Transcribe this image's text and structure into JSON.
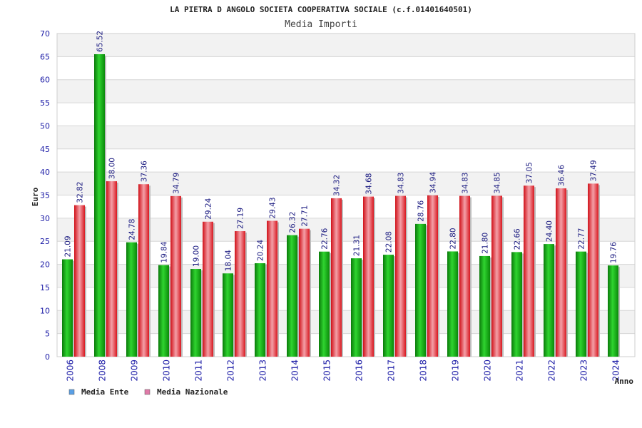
{
  "chart_data": {
    "type": "bar",
    "title": "LA PIETRA D ANGOLO SOCIETA COOPERATIVA SOCIALE (c.f.01401640501)",
    "subtitle": "Media Importi",
    "xlabel": "Anno",
    "ylabel": "Euro",
    "ylim": [
      0,
      70
    ],
    "ytick_step": 5,
    "grid": true,
    "legend_placement": "bottom-left",
    "categories": [
      "2006",
      "2008",
      "2009",
      "2010",
      "2011",
      "2012",
      "2013",
      "2014",
      "2015",
      "2016",
      "2017",
      "2018",
      "2019",
      "2020",
      "2021",
      "2022",
      "2023",
      "2024"
    ],
    "series": [
      {
        "name": "Media Ente",
        "color": "#1aa31a",
        "legend_color": "#5aa0e6",
        "values": [
          21.09,
          65.52,
          24.78,
          19.84,
          19.0,
          18.04,
          20.24,
          26.32,
          22.76,
          21.31,
          22.08,
          28.76,
          22.8,
          21.8,
          22.66,
          24.4,
          22.77,
          19.76
        ],
        "labels": [
          "21.09",
          "65.52",
          "24.78",
          "19.84",
          "19.00",
          "18.04",
          "20.24",
          "26.32",
          "22.76",
          "21.31",
          "22.08",
          "28.76",
          "22.80",
          "21.80",
          "22.66",
          "24.40",
          "22.77",
          "19.76"
        ]
      },
      {
        "name": "Media Nazionale",
        "color": "#e8202a",
        "legend_color": "#e07aa8",
        "values": [
          32.82,
          38.0,
          37.36,
          34.79,
          29.24,
          27.19,
          29.43,
          27.71,
          34.32,
          34.68,
          34.83,
          34.94,
          34.83,
          34.85,
          37.05,
          36.46,
          37.49,
          null
        ],
        "labels": [
          "32.82",
          "38.00",
          "37.36",
          "34.79",
          "29.24",
          "27.19",
          "29.43",
          "27.71",
          "34.32",
          "34.68",
          "34.83",
          "34.94",
          "34.83",
          "34.85",
          "37.05",
          "36.46",
          "37.49",
          null
        ]
      }
    ]
  }
}
